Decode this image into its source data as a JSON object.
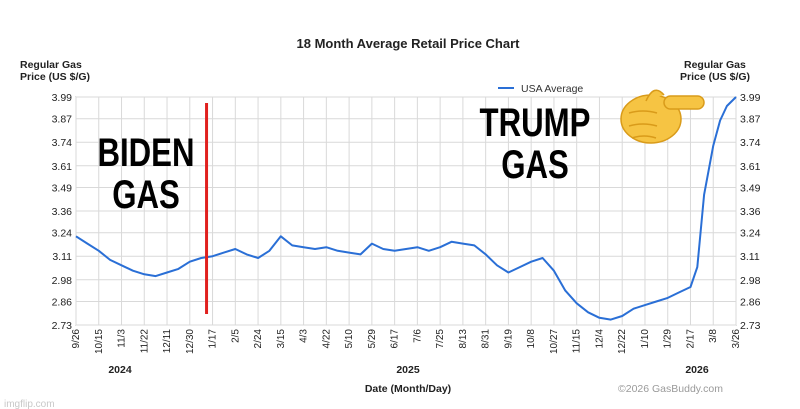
{
  "chart_data": {
    "type": "line",
    "title": "18 Month Average Retail Price Chart",
    "ylabel_left": [
      "Regular Gas",
      "Price (US $/G)"
    ],
    "ylabel_right": [
      "Regular Gas",
      "Price (US $/G)"
    ],
    "xlabel": "Date (Month/Day)",
    "ylim": [
      2.73,
      3.99
    ],
    "yticks": [
      "3.99",
      "3.87",
      "3.74",
      "3.61",
      "3.49",
      "3.36",
      "3.24",
      "3.11",
      "2.98",
      "2.86",
      "2.73"
    ],
    "x_tick_labels": [
      "9/26",
      "10/15",
      "11/3",
      "11/22",
      "12/11",
      "12/30",
      "1/17",
      "2/5",
      "2/24",
      "3/15",
      "4/3",
      "4/22",
      "5/10",
      "5/29",
      "6/17",
      "7/6",
      "7/25",
      "8/13",
      "8/31",
      "9/19",
      "10/8",
      "10/27",
      "11/15",
      "12/4",
      "12/22",
      "1/10",
      "1/29",
      "2/17",
      "3/8",
      "3/26"
    ],
    "year_labels": [
      "2024",
      "2025",
      "2026"
    ],
    "grid": true,
    "legend_position": "top-right",
    "series": [
      {
        "name": "USA Average",
        "color": "#2a6fd6",
        "x_index": [
          0,
          0.5,
          1,
          1.5,
          2,
          2.5,
          3,
          3.5,
          4,
          4.5,
          5,
          5.5,
          6,
          6.5,
          7,
          7.5,
          8,
          8.5,
          9,
          9.5,
          10,
          10.5,
          11,
          11.5,
          12,
          12.5,
          13,
          13.5,
          14,
          14.5,
          15,
          15.5,
          16,
          16.5,
          17,
          17.5,
          18,
          18.5,
          19,
          19.5,
          20,
          20.5,
          21,
          21.5,
          22,
          22.5,
          23,
          23.5,
          24,
          24.5,
          25,
          25.5,
          26,
          26.5,
          27,
          27.3,
          27.6,
          28,
          28.3,
          28.6,
          29
        ],
        "values": [
          3.22,
          3.18,
          3.14,
          3.09,
          3.06,
          3.03,
          3.01,
          3.0,
          3.02,
          3.04,
          3.08,
          3.1,
          3.11,
          3.13,
          3.15,
          3.12,
          3.1,
          3.14,
          3.22,
          3.17,
          3.16,
          3.15,
          3.16,
          3.14,
          3.13,
          3.12,
          3.18,
          3.15,
          3.14,
          3.15,
          3.16,
          3.14,
          3.16,
          3.19,
          3.18,
          3.17,
          3.12,
          3.06,
          3.02,
          3.05,
          3.08,
          3.1,
          3.03,
          2.92,
          2.85,
          2.8,
          2.77,
          2.76,
          2.78,
          2.82,
          2.84,
          2.86,
          2.88,
          2.91,
          2.94,
          3.05,
          3.45,
          3.72,
          3.86,
          3.94,
          3.99
        ]
      }
    ],
    "annotations": [
      "BIDEN",
      "GAS",
      "TRUMP",
      "GAS"
    ],
    "divider_at_tick": "1/17",
    "credit": "©2026 GasBuddy.com"
  },
  "watermark": "imgflip.com",
  "colors": {
    "line": "#2a6fd6",
    "divider": "#e0201e",
    "grid": "#d9d9d9"
  }
}
